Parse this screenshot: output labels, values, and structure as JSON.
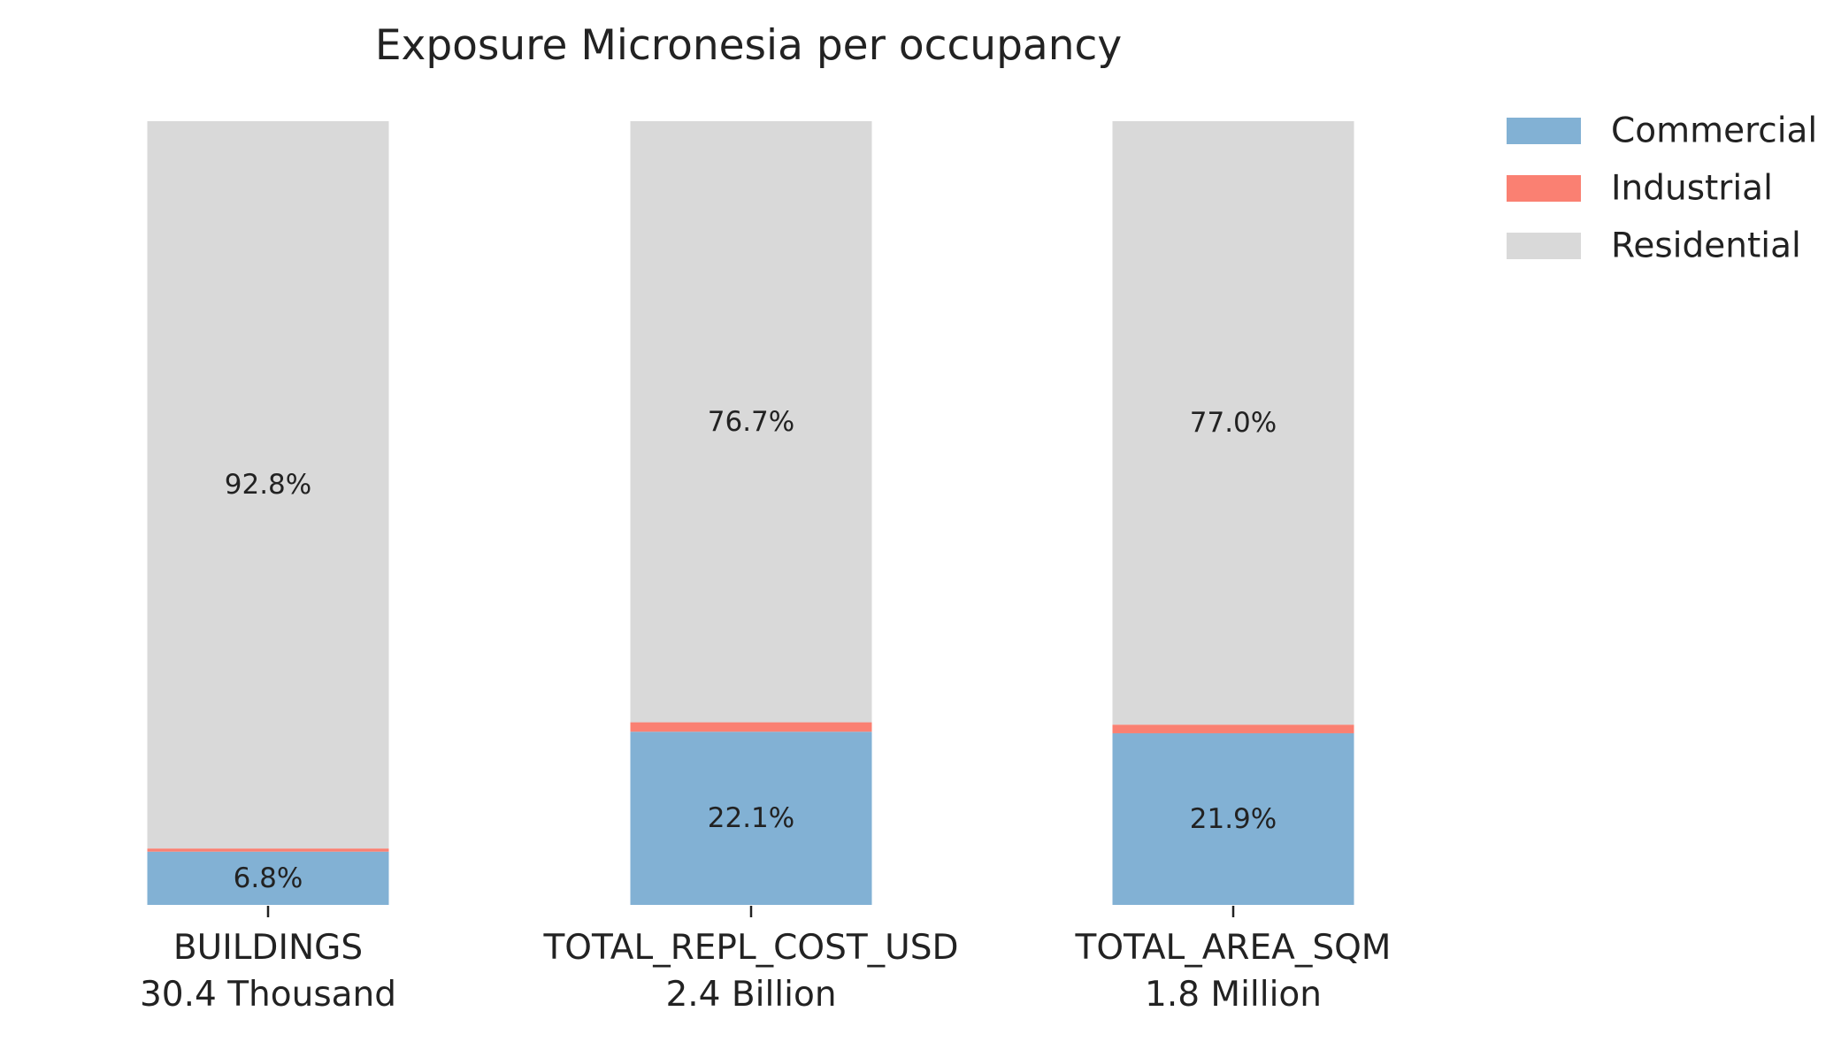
{
  "chart_data": {
    "type": "bar",
    "stacked": true,
    "normalized": true,
    "title": "Exposure Micronesia per occupancy",
    "xlabel": "",
    "ylabel": "",
    "ylim": [
      0,
      100
    ],
    "grid": false,
    "categories": [
      {
        "name": "BUILDINGS",
        "total": "30.4 Thousand"
      },
      {
        "name": "TOTAL_REPL_COST_USD",
        "total": "2.4 Billion"
      },
      {
        "name": "TOTAL_AREA_SQM",
        "total": "1.8 Million"
      }
    ],
    "series": [
      {
        "name": "Commercial",
        "color": "#82b1d4",
        "values": [
          6.8,
          22.1,
          21.9
        ],
        "labels": [
          "6.8%",
          "22.1%",
          "21.9%"
        ]
      },
      {
        "name": "Industrial",
        "color": "#fa8072",
        "values": [
          0.4,
          1.2,
          1.1
        ],
        "labels": [
          null,
          null,
          null
        ]
      },
      {
        "name": "Residential",
        "color": "#d9d9d9",
        "values": [
          92.8,
          76.7,
          77.0
        ],
        "labels": [
          "92.8%",
          "76.7%",
          "77.0%"
        ]
      }
    ],
    "legend": {
      "position": "top-right",
      "entries": [
        "Commercial",
        "Industrial",
        "Residential"
      ]
    }
  }
}
